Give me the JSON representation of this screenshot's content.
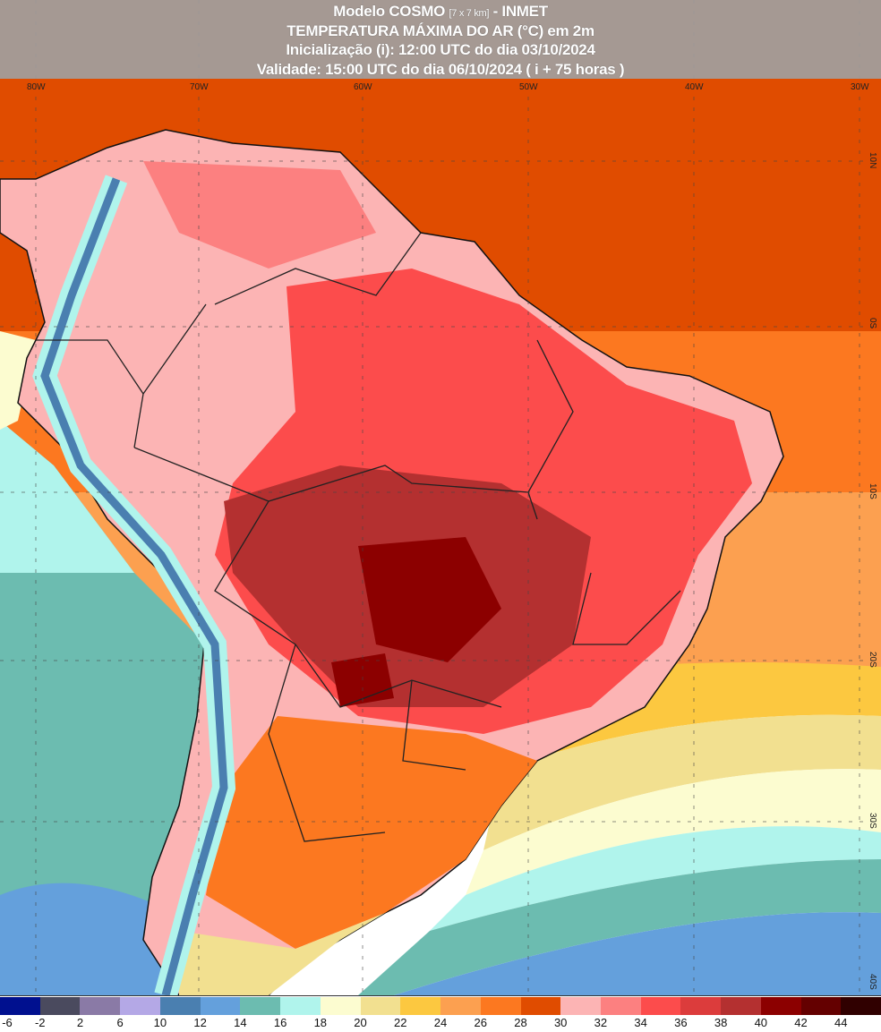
{
  "header": {
    "line1_main": "Modelo COSMO",
    "line1_res": "[7 x 7 km]",
    "line1_org": "- INMET",
    "line2": "TEMPERATURA MÁXIMA DO AR (°C) em 2m",
    "line3": "Inicialização (i): 12:00 UTC do dia 03/10/2024",
    "line4": "Validade: 15:00 UTC do dia 06/10/2024 ( i + 75 horas )"
  },
  "longitude_labels": [
    "80W",
    "70W",
    "60W",
    "50W",
    "40W",
    "30W"
  ],
  "latitude_labels": [
    "10N",
    "0S",
    "10S",
    "20S",
    "30S",
    "40S"
  ],
  "legend": {
    "labels": [
      "-6",
      "-2",
      "2",
      "6",
      "10",
      "12",
      "14",
      "16",
      "18",
      "20",
      "22",
      "24",
      "26",
      "28",
      "30",
      "32",
      "34",
      "36",
      "38",
      "40",
      "42",
      "44"
    ],
    "colors": [
      "#00108f",
      "#4a4a5e",
      "#8a7aa6",
      "#b4a8e6",
      "#4a7fb0",
      "#64a0dc",
      "#6cbcb0",
      "#b0f4ec",
      "#fcfcd0",
      "#f2e090",
      "#fcc840",
      "#fca050",
      "#fc7820",
      "#e04c00",
      "#fcb4b4",
      "#fc8080",
      "#fc4c4c",
      "#dc3c3c",
      "#b43030",
      "#8c0000",
      "#640000",
      "#300000"
    ]
  }
}
